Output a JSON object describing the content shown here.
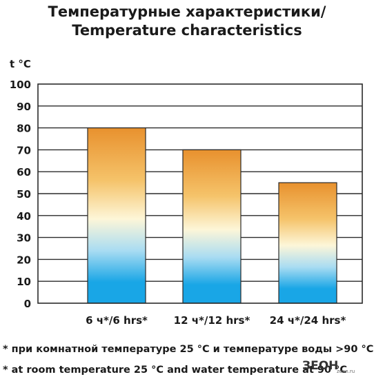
{
  "chart_data": {
    "type": "bar",
    "title": "Температурные характеристики/",
    "subtitle": "Temperature characteristics",
    "ylabel": "t °C",
    "xlabel": "",
    "ylim": [
      0,
      100
    ],
    "yticks": [
      0,
      10,
      20,
      30,
      40,
      50,
      60,
      70,
      80,
      90,
      100
    ],
    "grid": true,
    "categories": [
      "6 ч*/6 hrs*",
      "12 ч*/12 hrs*",
      "24 ч*/24 hrs*"
    ],
    "values": [
      80,
      70,
      55
    ],
    "bar_gradient": [
      "#e8912e",
      "#fdf6d8",
      "#19a6e6"
    ],
    "footnotes": [
      "* при комнатной температуре 25 °С и температуре воды >90 °С",
      "* at room temperature 25 °С and water temperature at 90 °С"
    ]
  },
  "logo": {
    "main": "ЗЕОН",
    "small": "zeon.ru"
  }
}
